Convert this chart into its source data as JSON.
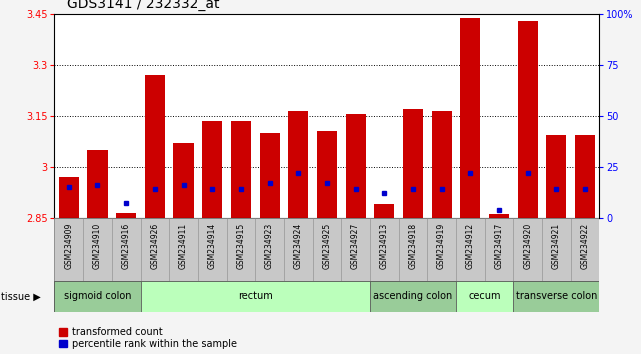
{
  "title": "GDS3141 / 232332_at",
  "samples": [
    "GSM234909",
    "GSM234910",
    "GSM234916",
    "GSM234926",
    "GSM234911",
    "GSM234914",
    "GSM234915",
    "GSM234923",
    "GSM234924",
    "GSM234925",
    "GSM234927",
    "GSM234913",
    "GSM234918",
    "GSM234919",
    "GSM234912",
    "GSM234917",
    "GSM234920",
    "GSM234921",
    "GSM234922"
  ],
  "transformed_count": [
    2.97,
    3.05,
    2.865,
    3.27,
    3.07,
    3.135,
    3.135,
    3.1,
    3.165,
    3.105,
    3.155,
    2.89,
    3.17,
    3.165,
    3.44,
    2.86,
    3.43,
    3.095,
    3.095
  ],
  "percentile_rank": [
    0.15,
    0.16,
    0.07,
    0.14,
    0.16,
    0.14,
    0.14,
    0.17,
    0.22,
    0.17,
    0.14,
    0.12,
    0.14,
    0.14,
    0.22,
    0.04,
    0.22,
    0.14,
    0.14
  ],
  "ymin": 2.85,
  "ymax": 3.45,
  "yticks": [
    2.85,
    3.0,
    3.15,
    3.3,
    3.45
  ],
  "ytick_labels": [
    "2.85",
    "3",
    "3.15",
    "3.3",
    "3.45"
  ],
  "right_yticks": [
    0,
    25,
    50,
    75,
    100
  ],
  "right_ytick_labels": [
    "0",
    "25",
    "50",
    "75",
    "100%"
  ],
  "bar_color": "#CC0000",
  "percentile_color": "#0000CC",
  "col_bg_color": "#C8C8C8",
  "plot_bg_color": "#FFFFFF",
  "tissue_groups": [
    {
      "label": "sigmoid colon",
      "start": 0,
      "end": 3,
      "color": "#99CC99"
    },
    {
      "label": "rectum",
      "start": 3,
      "end": 11,
      "color": "#BBFFBB"
    },
    {
      "label": "ascending colon",
      "start": 11,
      "end": 14,
      "color": "#99CC99"
    },
    {
      "label": "cecum",
      "start": 14,
      "end": 16,
      "color": "#BBFFBB"
    },
    {
      "label": "transverse colon",
      "start": 16,
      "end": 19,
      "color": "#99CC99"
    }
  ],
  "legend_items": [
    {
      "label": "transformed count",
      "color": "#CC0000"
    },
    {
      "label": "percentile rank within the sample",
      "color": "#0000CC"
    }
  ],
  "title_fontsize": 10,
  "tick_fontsize": 7,
  "tissue_fontsize": 7,
  "bar_width": 0.7
}
